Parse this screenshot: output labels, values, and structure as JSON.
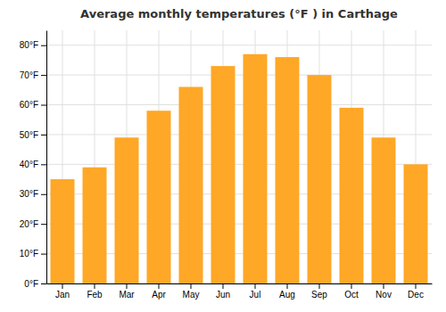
{
  "chart_data": {
    "type": "bar",
    "title": "Average monthly temperatures (°F ) in Carthage",
    "categories": [
      "Jan",
      "Feb",
      "Mar",
      "Apr",
      "May",
      "Jun",
      "Jul",
      "Aug",
      "Sep",
      "Oct",
      "Nov",
      "Dec"
    ],
    "values": [
      35,
      39,
      49,
      58,
      66,
      73,
      77,
      76,
      70,
      59,
      49,
      40
    ],
    "color": "#FFA726",
    "ylim": [
      0,
      85
    ],
    "yticks": [
      {
        "value": 0,
        "label": "0°F"
      },
      {
        "value": 10,
        "label": "10°F"
      },
      {
        "value": 20,
        "label": "20°F"
      },
      {
        "value": 30,
        "label": "30°F"
      },
      {
        "value": 40,
        "label": "40°F"
      },
      {
        "value": 50,
        "label": "50°F"
      },
      {
        "value": 60,
        "label": "60°F"
      },
      {
        "value": 70,
        "label": "70°F"
      },
      {
        "value": 80,
        "label": "80°F"
      }
    ],
    "grid": true
  }
}
